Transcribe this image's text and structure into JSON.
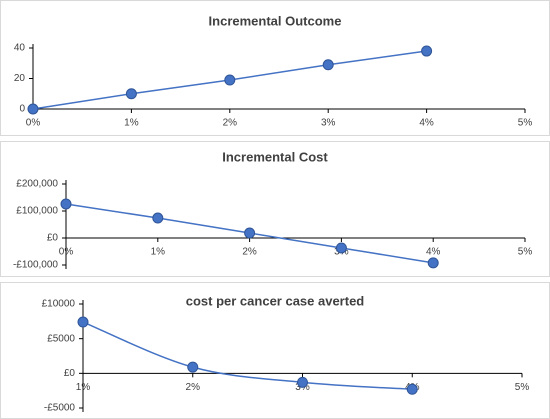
{
  "chart_data": [
    {
      "type": "line",
      "title": "Incremental Outcome",
      "x": [
        0,
        1,
        2,
        3,
        4
      ],
      "values": [
        0,
        10,
        19,
        29,
        38
      ],
      "color": "#4472c4",
      "xlim": [
        0,
        5
      ],
      "xticks": [
        {
          "value": 0,
          "label": "0%"
        },
        {
          "value": 1,
          "label": "1%"
        },
        {
          "value": 2,
          "label": "2%"
        },
        {
          "value": 3,
          "label": "3%"
        },
        {
          "value": 4,
          "label": "4%"
        },
        {
          "value": 5,
          "label": "5%"
        }
      ],
      "ylim": [
        0,
        40
      ],
      "yticks": [
        0,
        20,
        40
      ],
      "grid": false,
      "smooth": false
    },
    {
      "type": "line",
      "title": "Incremental Cost",
      "x": [
        0,
        1,
        2,
        3,
        4
      ],
      "values": [
        126000,
        74000,
        18500,
        -37000,
        -92000
      ],
      "color": "#4472c4",
      "xlim": [
        0,
        5
      ],
      "xticks": [
        {
          "value": 0,
          "label": "0%"
        },
        {
          "value": 1,
          "label": "1%"
        },
        {
          "value": 2,
          "label": "2%"
        },
        {
          "value": 3,
          "label": "3%"
        },
        {
          "value": 4,
          "label": "4%"
        },
        {
          "value": 5,
          "label": "5%"
        }
      ],
      "ylim": [
        -100000,
        200000
      ],
      "yticks": [
        {
          "value": -100000,
          "label": "-£100,000"
        },
        {
          "value": 0,
          "label": "£0"
        },
        {
          "value": 100000,
          "label": "£100,000"
        },
        {
          "value": 200000,
          "label": "£200,000"
        }
      ],
      "grid": false,
      "smooth": false
    },
    {
      "type": "line",
      "title": "cost per cancer case averted",
      "x": [
        1,
        2,
        3,
        4
      ],
      "values": [
        7400,
        900,
        -1300,
        -2300
      ],
      "color": "#4472c4",
      "xlim": [
        1,
        5
      ],
      "xticks": [
        {
          "value": 1,
          "label": "1%"
        },
        {
          "value": 2,
          "label": "2%"
        },
        {
          "value": 3,
          "label": "3%"
        },
        {
          "value": 4,
          "label": "4%"
        },
        {
          "value": 5,
          "label": "5%"
        }
      ],
      "ylim": [
        -5000,
        10000
      ],
      "yticks": [
        {
          "value": -5000,
          "label": "-£5000"
        },
        {
          "value": 0,
          "label": "£0"
        },
        {
          "value": 5000,
          "label": "£5000"
        },
        {
          "value": 10000,
          "label": "£10000"
        }
      ],
      "grid": false,
      "smooth": true
    }
  ]
}
